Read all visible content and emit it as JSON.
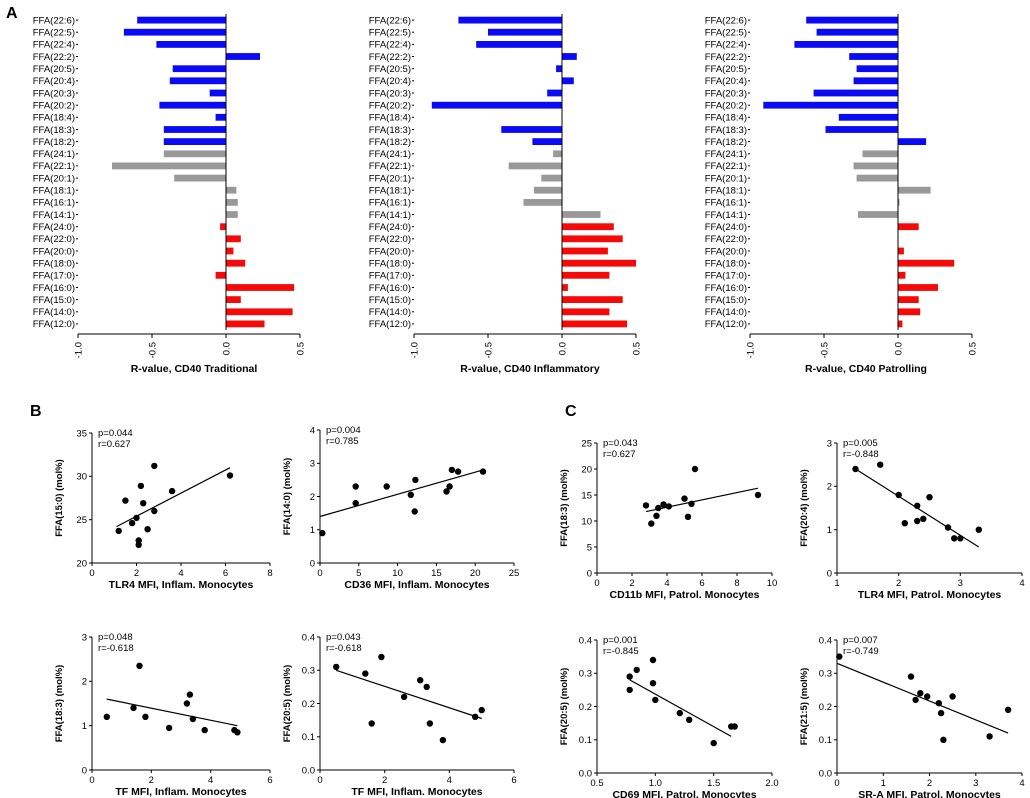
{
  "panel_labels": [
    "A",
    "B",
    "C"
  ],
  "chart_data": [
    {
      "id": "A1",
      "type": "bar",
      "orientation": "horizontal",
      "categories": [
        "FFA(22:6)",
        "FFA(22:5)",
        "FFA(22:4)",
        "FFA(22:2)",
        "FFA(20:5)",
        "FFA(20:4)",
        "FFA(20:3)",
        "FFA(20:2)",
        "FFA(18:4)",
        "FFA(18:3)",
        "FFA(18:2)",
        "FFA(24:1)",
        "FFA(22:1)",
        "FFA(20:1)",
        "FFA(18:1)",
        "FFA(16:1)",
        "FFA(14:1)",
        "FFA(24:0)",
        "FFA(22:0)",
        "FFA(20:0)",
        "FFA(18:0)",
        "FFA(17:0)",
        "FFA(16:0)",
        "FFA(15:0)",
        "FFA(14:0)",
        "FFA(12:0)"
      ],
      "values": [
        -0.6,
        -0.69,
        -0.47,
        0.23,
        -0.36,
        -0.38,
        -0.11,
        -0.45,
        -0.07,
        -0.42,
        -0.42,
        -0.42,
        -0.77,
        -0.35,
        0.07,
        0.08,
        0.08,
        -0.04,
        0.1,
        0.05,
        0.13,
        -0.07,
        0.46,
        0.1,
        0.45,
        0.26
      ],
      "colors": [
        "#0a0af5",
        "#0a0af5",
        "#0a0af5",
        "#0a0af5",
        "#0a0af5",
        "#0a0af5",
        "#0a0af5",
        "#0a0af5",
        "#0a0af5",
        "#0a0af5",
        "#0a0af5",
        "#999999",
        "#999999",
        "#999999",
        "#999999",
        "#999999",
        "#999999",
        "#f50a0a",
        "#f50a0a",
        "#f50a0a",
        "#f50a0a",
        "#f50a0a",
        "#f50a0a",
        "#f50a0a",
        "#f50a0a",
        "#f50a0a"
      ],
      "xlim": [
        -1.0,
        0.5
      ],
      "xticks": [
        "-1.0",
        "-0.5",
        "0.0",
        "0.5"
      ],
      "xlabel": "R-value, CD40 Traditional"
    },
    {
      "id": "A2",
      "type": "bar",
      "orientation": "horizontal",
      "categories": [
        "FFA(22:6)",
        "FFA(22:5)",
        "FFA(22:4)",
        "FFA(22:2)",
        "FFA(20:5)",
        "FFA(20:4)",
        "FFA(20:3)",
        "FFA(20:2)",
        "FFA(18:4)",
        "FFA(18:3)",
        "FFA(18:2)",
        "FFA(24:1)",
        "FFA(22:1)",
        "FFA(20:1)",
        "FFA(18:1)",
        "FFA(16:1)",
        "FFA(14:1)",
        "FFA(24:0)",
        "FFA(22:0)",
        "FFA(20:0)",
        "FFA(18:0)",
        "FFA(17:0)",
        "FFA(16:0)",
        "FFA(15:0)",
        "FFA(14:0)",
        "FFA(12:0)"
      ],
      "values": [
        -0.7,
        -0.5,
        -0.58,
        0.1,
        -0.04,
        0.08,
        -0.1,
        -0.88,
        0,
        -0.41,
        -0.2,
        -0.06,
        -0.36,
        -0.14,
        -0.19,
        -0.26,
        0.26,
        0.35,
        0.41,
        0.31,
        0.5,
        0.32,
        0.04,
        0.41,
        0.32,
        0.44
      ],
      "colors": [
        "#0a0af5",
        "#0a0af5",
        "#0a0af5",
        "#0a0af5",
        "#0a0af5",
        "#0a0af5",
        "#0a0af5",
        "#0a0af5",
        "#0a0af5",
        "#0a0af5",
        "#0a0af5",
        "#999999",
        "#999999",
        "#999999",
        "#999999",
        "#999999",
        "#999999",
        "#f50a0a",
        "#f50a0a",
        "#f50a0a",
        "#f50a0a",
        "#f50a0a",
        "#f50a0a",
        "#f50a0a",
        "#f50a0a",
        "#f50a0a"
      ],
      "xlim": [
        -1.0,
        0.5
      ],
      "xticks": [
        "-1.0",
        "-0.5",
        "0.0",
        "0.5"
      ],
      "xlabel": "R-value, CD40 Inflammatory"
    },
    {
      "id": "A3",
      "type": "bar",
      "orientation": "horizontal",
      "categories": [
        "FFA(22:6)",
        "FFA(22:5)",
        "FFA(22:4)",
        "FFA(22:2)",
        "FFA(20:5)",
        "FFA(20:4)",
        "FFA(20:3)",
        "FFA(20:2)",
        "FFA(18:4)",
        "FFA(18:3)",
        "FFA(18:2)",
        "FFA(24:1)",
        "FFA(22:1)",
        "FFA(20:1)",
        "FFA(18:1)",
        "FFA(16:1)",
        "FFA(14:1)",
        "FFA(24:0)",
        "FFA(22:0)",
        "FFA(20:0)",
        "FFA(18:0)",
        "FFA(17:0)",
        "FFA(16:0)",
        "FFA(15:0)",
        "FFA(14:0)",
        "FFA(12:0)"
      ],
      "values": [
        -0.62,
        -0.55,
        -0.7,
        -0.33,
        -0.28,
        -0.3,
        -0.57,
        -0.91,
        -0.4,
        -0.49,
        0.19,
        -0.24,
        -0.3,
        -0.28,
        0.22,
        0.01,
        -0.27,
        0.14,
        0,
        0.04,
        0.38,
        0.05,
        0.27,
        0.14,
        0.15,
        0.03
      ],
      "colors": [
        "#0a0af5",
        "#0a0af5",
        "#0a0af5",
        "#0a0af5",
        "#0a0af5",
        "#0a0af5",
        "#0a0af5",
        "#0a0af5",
        "#0a0af5",
        "#0a0af5",
        "#0a0af5",
        "#999999",
        "#999999",
        "#999999",
        "#999999",
        "#999999",
        "#999999",
        "#f50a0a",
        "#f50a0a",
        "#f50a0a",
        "#f50a0a",
        "#f50a0a",
        "#f50a0a",
        "#f50a0a",
        "#f50a0a",
        "#f50a0a"
      ],
      "xlim": [
        -1.0,
        0.5
      ],
      "xticks": [
        "-1.0",
        "-0.5",
        "0.0",
        "0.5"
      ],
      "xlabel": "R-value, CD40 Patrolling"
    },
    {
      "id": "B1",
      "type": "scatter",
      "stats": [
        "p=0.044",
        "r=0.627"
      ],
      "xlabel": "TLR4 MFI, Inflam. Monocytes",
      "ylabel": "FFA(15:0) (mol%)",
      "xlim": [
        0,
        8
      ],
      "ylim": [
        20,
        35
      ],
      "xticks": [
        "0",
        "2",
        "4",
        "6",
        "8"
      ],
      "yticks": [
        "20",
        "25",
        "30",
        "35"
      ],
      "points": [
        [
          1.2,
          23.7
        ],
        [
          1.5,
          27.2
        ],
        [
          1.8,
          24.6
        ],
        [
          2.0,
          25.2
        ],
        [
          2.1,
          22.6
        ],
        [
          2.1,
          22.1
        ],
        [
          2.3,
          26.9
        ],
        [
          2.2,
          28.9
        ],
        [
          2.5,
          23.9
        ],
        [
          2.8,
          26.0
        ],
        [
          2.8,
          31.2
        ],
        [
          3.6,
          28.3
        ],
        [
          6.2,
          30.1
        ]
      ],
      "fit": [
        [
          1.1,
          24.2
        ],
        [
          6.2,
          31.0
        ]
      ]
    },
    {
      "id": "B2",
      "type": "scatter",
      "stats": [
        "p=0.004",
        "r=0.785"
      ],
      "xlabel": "CD36 MFI, Inflam. Monocytes",
      "ylabel": "FFA(14:0) (mol%)",
      "xlim": [
        0,
        25
      ],
      "ylim": [
        0,
        4
      ],
      "xticks": [
        "0",
        "5",
        "10",
        "15",
        "20",
        "25"
      ],
      "yticks": [
        "0",
        "1",
        "2",
        "3",
        "4"
      ],
      "points": [
        [
          0.3,
          0.9
        ],
        [
          4.6,
          1.8
        ],
        [
          4.6,
          2.3
        ],
        [
          8.6,
          2.3
        ],
        [
          11.7,
          2.05
        ],
        [
          12.2,
          1.55
        ],
        [
          12.3,
          2.5
        ],
        [
          16.3,
          2.15
        ],
        [
          16.7,
          2.3
        ],
        [
          17.0,
          2.8
        ],
        [
          17.8,
          2.75
        ],
        [
          21.0,
          2.75
        ]
      ],
      "fit": [
        [
          0,
          1.4
        ],
        [
          21,
          2.8
        ]
      ]
    },
    {
      "id": "B3",
      "type": "scatter",
      "stats": [
        "p=0.048",
        "r=-0.618"
      ],
      "xlabel": "TF MFI, Inflam. Monocytes",
      "ylabel": "FFA(18:3) (mol%)",
      "xlim": [
        0,
        6
      ],
      "ylim": [
        0,
        3
      ],
      "xticks": [
        "0",
        "2",
        "4",
        "6"
      ],
      "yticks": [
        "0",
        "1",
        "2",
        "3"
      ],
      "points": [
        [
          0.5,
          1.2
        ],
        [
          1.4,
          1.4
        ],
        [
          1.6,
          2.35
        ],
        [
          1.8,
          1.2
        ],
        [
          2.6,
          0.95
        ],
        [
          3.2,
          1.5
        ],
        [
          3.3,
          1.7
        ],
        [
          3.4,
          1.15
        ],
        [
          3.8,
          0.9
        ],
        [
          4.8,
          0.9
        ],
        [
          4.9,
          0.85
        ]
      ],
      "fit": [
        [
          0.5,
          1.6
        ],
        [
          4.9,
          1.0
        ]
      ]
    },
    {
      "id": "B4",
      "type": "scatter",
      "stats": [
        "p=0.043",
        "r=-0.618"
      ],
      "xlabel": "TF MFI, Inflam. Monocytes",
      "ylabel": "FFA(20:5) (mol%)",
      "xlim": [
        0,
        6
      ],
      "ylim": [
        0.0,
        0.4
      ],
      "xticks": [
        "0",
        "2",
        "4",
        "6"
      ],
      "yticks": [
        "0.0",
        "0.1",
        "0.2",
        "0.3",
        "0.4"
      ],
      "points": [
        [
          0.5,
          0.31
        ],
        [
          1.4,
          0.29
        ],
        [
          1.6,
          0.14
        ],
        [
          1.9,
          0.34
        ],
        [
          2.6,
          0.22
        ],
        [
          3.1,
          0.27
        ],
        [
          3.3,
          0.25
        ],
        [
          3.4,
          0.14
        ],
        [
          3.8,
          0.09
        ],
        [
          4.8,
          0.16
        ],
        [
          5.0,
          0.18
        ]
      ],
      "fit": [
        [
          0.5,
          0.3
        ],
        [
          5.0,
          0.155
        ]
      ]
    },
    {
      "id": "C1",
      "type": "scatter",
      "stats": [
        "p=0.043",
        "r=0.627"
      ],
      "xlabel": "CD11b MFI, Patrol. Monocytes",
      "ylabel": "FFA(18:3) (mol%)",
      "xlim": [
        0,
        10
      ],
      "ylim": [
        0,
        25
      ],
      "xticks": [
        "0",
        "2",
        "4",
        "6",
        "8",
        "10"
      ],
      "yticks": [
        "0",
        "5",
        "10",
        "15",
        "20",
        "25"
      ],
      "points": [
        [
          2.8,
          13
        ],
        [
          3.1,
          9.5
        ],
        [
          3.4,
          11
        ],
        [
          3.5,
          12.5
        ],
        [
          3.8,
          13.2
        ],
        [
          4.1,
          12.8
        ],
        [
          5.0,
          14.3
        ],
        [
          5.2,
          10.8
        ],
        [
          5.4,
          13.3
        ],
        [
          5.6,
          20
        ],
        [
          9.2,
          15
        ]
      ],
      "fit": [
        [
          2.8,
          11.8
        ],
        [
          9.2,
          16.3
        ]
      ]
    },
    {
      "id": "C2",
      "type": "scatter",
      "stats": [
        "p=0.005",
        "r=-0.848"
      ],
      "xlabel": "TLR4 MFI, Patrol. Monocytes",
      "ylabel": "FFA(20:4) (mol%)",
      "xlim": [
        1,
        4
      ],
      "ylim": [
        0,
        3
      ],
      "xticks": [
        "1",
        "2",
        "3",
        "4"
      ],
      "yticks": [
        "0",
        "1",
        "2",
        "3"
      ],
      "points": [
        [
          1.3,
          2.4
        ],
        [
          1.7,
          2.5
        ],
        [
          2.0,
          1.8
        ],
        [
          2.1,
          1.15
        ],
        [
          2.3,
          1.55
        ],
        [
          2.3,
          1.2
        ],
        [
          2.4,
          1.25
        ],
        [
          2.5,
          1.75
        ],
        [
          2.8,
          1.05
        ],
        [
          2.9,
          0.8
        ],
        [
          3.0,
          0.8
        ],
        [
          3.3,
          1.0
        ]
      ],
      "fit": [
        [
          1.3,
          2.4
        ],
        [
          3.3,
          0.6
        ]
      ]
    },
    {
      "id": "C3",
      "type": "scatter",
      "stats": [
        "p=0.001",
        "r=-0.845"
      ],
      "xlabel": "CD69 MFI, Patrol. Monocytes",
      "ylabel": "FFA(20:5) (mol%)",
      "xlim": [
        0.5,
        2.0
      ],
      "ylim": [
        0.0,
        0.4
      ],
      "xticks": [
        "0.5",
        "1.0",
        "1.5",
        "2.0"
      ],
      "yticks": [
        "0.0",
        "0.1",
        "0.2",
        "0.3",
        "0.4"
      ],
      "points": [
        [
          0.78,
          0.29
        ],
        [
          0.78,
          0.25
        ],
        [
          0.84,
          0.31
        ],
        [
          0.98,
          0.34
        ],
        [
          0.98,
          0.27
        ],
        [
          1.0,
          0.22
        ],
        [
          1.21,
          0.18
        ],
        [
          1.29,
          0.16
        ],
        [
          1.5,
          0.09
        ],
        [
          1.65,
          0.14
        ],
        [
          1.68,
          0.14
        ]
      ],
      "fit": [
        [
          0.78,
          0.28
        ],
        [
          1.65,
          0.11
        ]
      ]
    },
    {
      "id": "C4",
      "type": "scatter",
      "stats": [
        "p=0.007",
        "r=-0.749"
      ],
      "xlabel": "SR-A MFI, Patrol. Monocytes",
      "ylabel": "FFA(21:5) (mol%)",
      "xlim": [
        0,
        4
      ],
      "ylim": [
        0.0,
        0.4
      ],
      "xticks": [
        "0",
        "1",
        "2",
        "3",
        "4"
      ],
      "yticks": [
        "0.0",
        "0.1",
        "0.2",
        "0.3",
        "0.4"
      ],
      "points": [
        [
          0.05,
          0.35
        ],
        [
          1.6,
          0.29
        ],
        [
          1.7,
          0.22
        ],
        [
          1.8,
          0.24
        ],
        [
          1.95,
          0.23
        ],
        [
          2.2,
          0.21
        ],
        [
          2.25,
          0.18
        ],
        [
          2.3,
          0.1
        ],
        [
          2.5,
          0.23
        ],
        [
          3.3,
          0.11
        ],
        [
          3.7,
          0.19
        ]
      ],
      "fit": [
        [
          0,
          0.33
        ],
        [
          3.7,
          0.12
        ]
      ]
    }
  ]
}
